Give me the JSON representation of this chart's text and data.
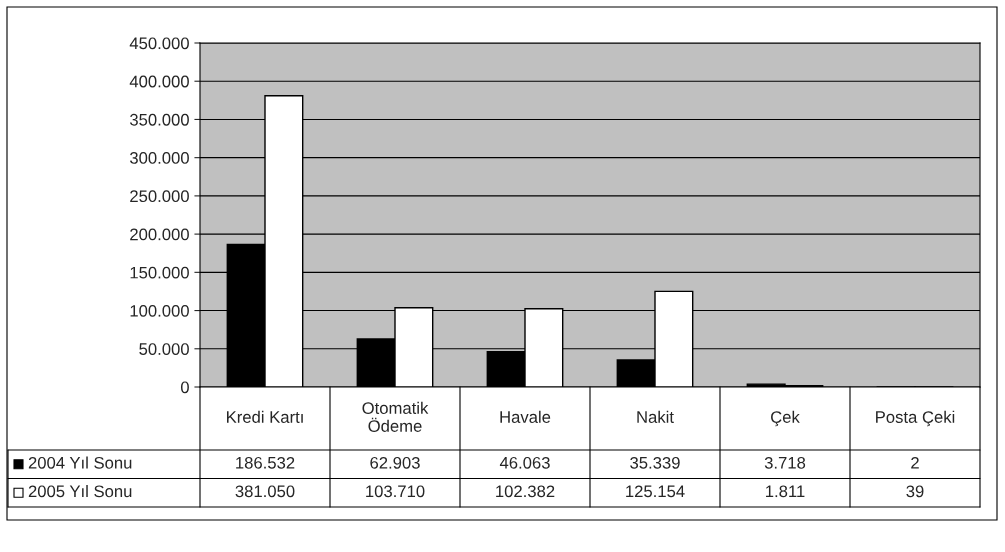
{
  "chart_data": {
    "type": "bar",
    "categories": [
      "Kredi Kartı",
      "Otomatik Ödeme",
      "Havale",
      "Nakit",
      "Çek",
      "Posta Çeki"
    ],
    "series": [
      {
        "name": "2004 Yıl Sonu",
        "color": "#000000",
        "values": [
          186532,
          62903,
          46063,
          35339,
          3718,
          2
        ],
        "value_labels": [
          "186.532",
          "62.903",
          "46.063",
          "35.339",
          "3.718",
          "2"
        ]
      },
      {
        "name": "2005 Yıl Sonu",
        "color": "#ffffff",
        "values": [
          381050,
          103710,
          102382,
          125154,
          1811,
          39
        ],
        "value_labels": [
          "381.050",
          "103.710",
          "102.382",
          "125.154",
          "1.811",
          "39"
        ]
      }
    ],
    "ylim": [
      0,
      450000
    ],
    "yticks": [
      0,
      {
        "value": 50000,
        "label": "50.000"
      },
      {
        "value": 100000,
        "label": "100.000"
      },
      {
        "value": 150000,
        "label": "150.000"
      },
      {
        "value": 200000,
        "label": "200.000"
      },
      {
        "value": 250000,
        "label": "250.000"
      },
      {
        "value": 300000,
        "label": "300.000"
      },
      {
        "value": 350000,
        "label": "350.000"
      },
      {
        "value": 400000,
        "label": "400.000"
      },
      {
        "value": 450000,
        "label": "450.000"
      }
    ],
    "grid": "y",
    "legend": "bottom"
  }
}
